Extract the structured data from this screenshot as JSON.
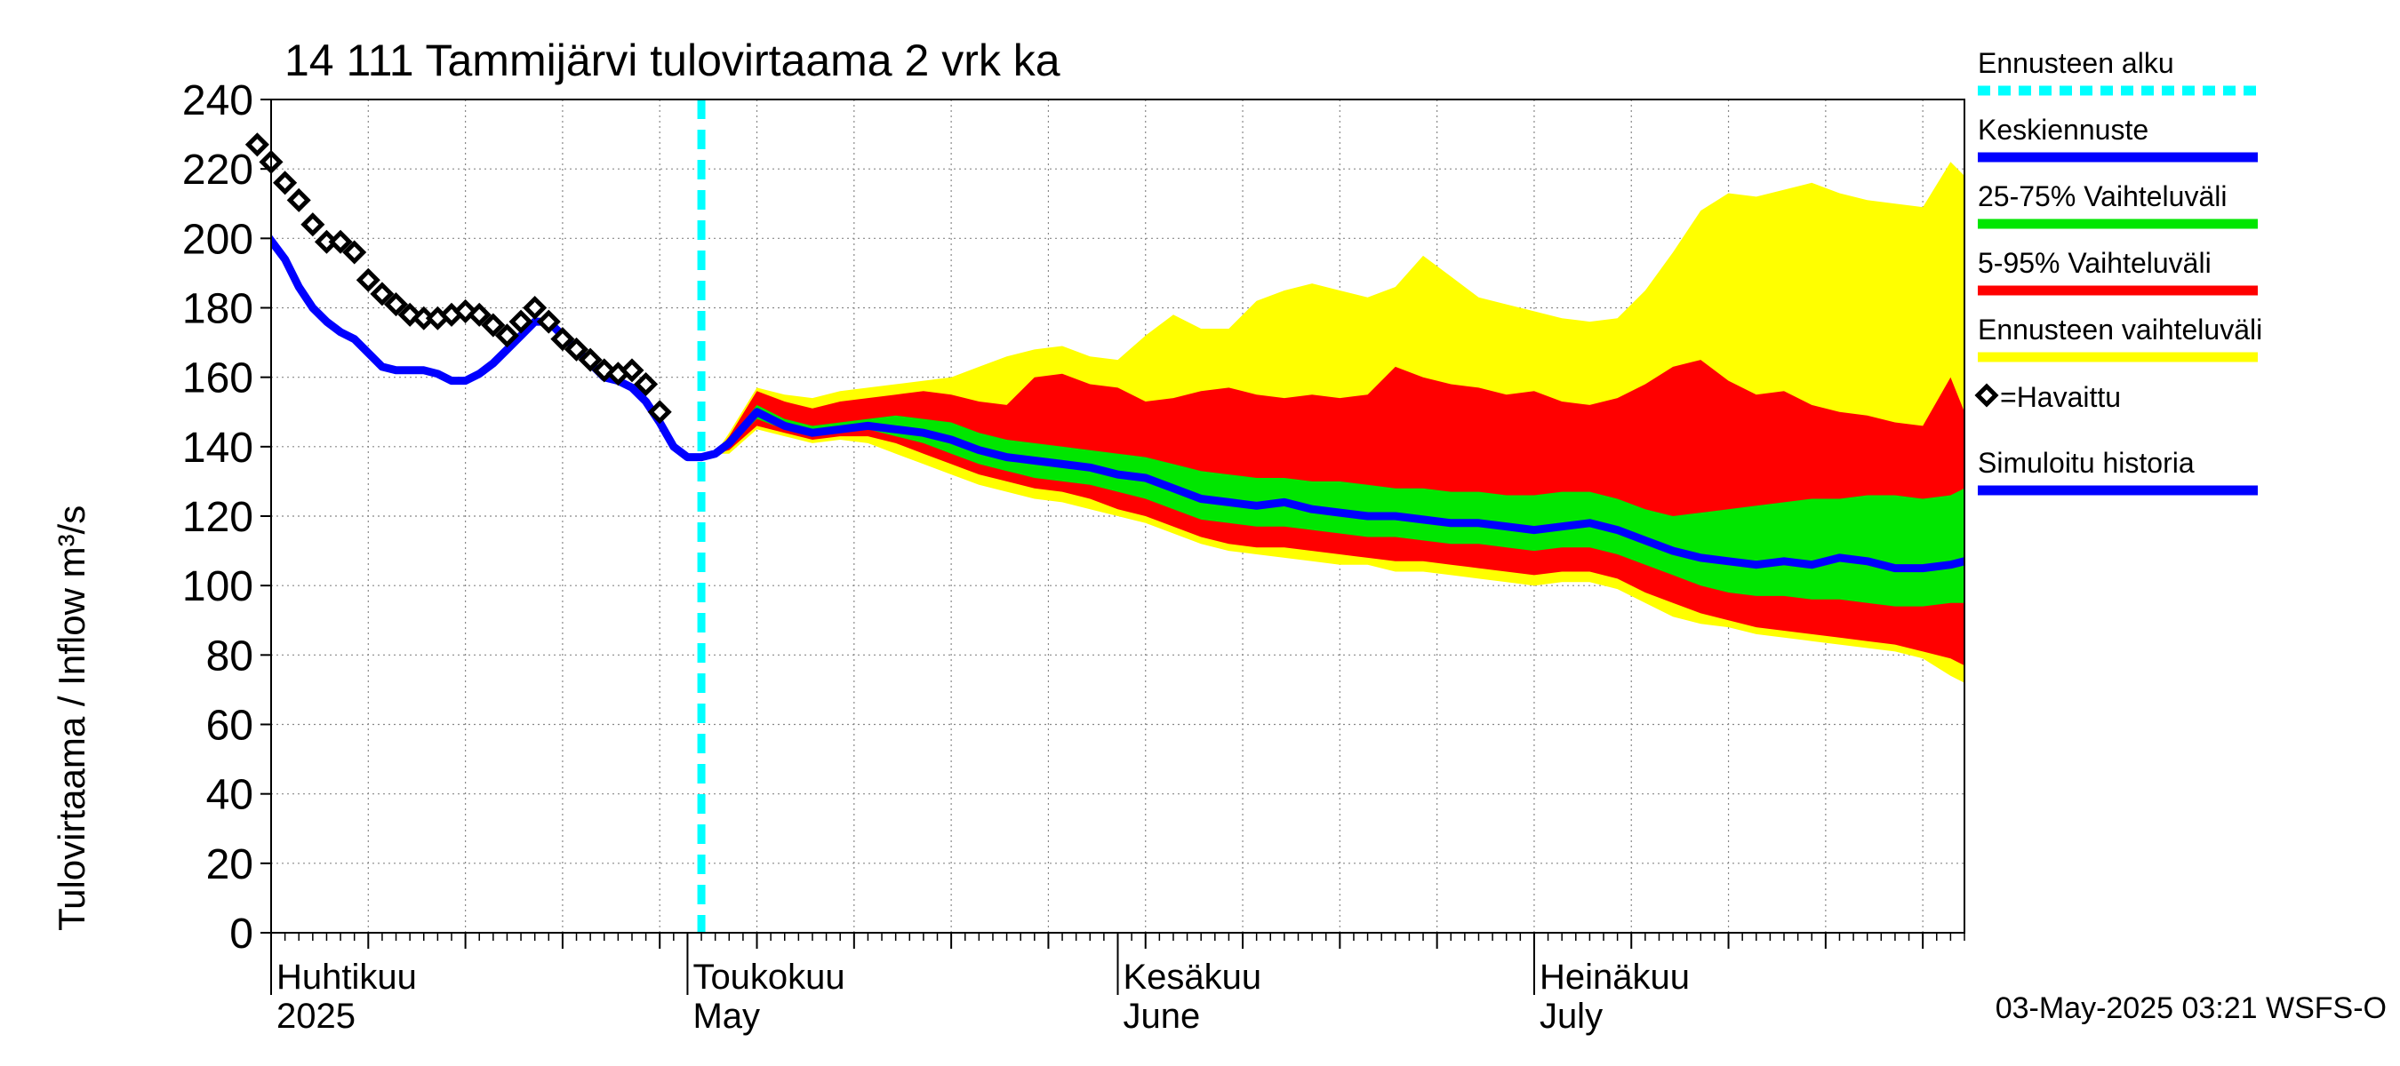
{
  "chart_data": {
    "type": "area",
    "title": "14 111 Tammijärvi tulovirtaama 2 vrk ka",
    "ylabel": "Tulovirtaama / Inflow    m³/s",
    "ylim": [
      0,
      240
    ],
    "yticks": [
      0,
      20,
      40,
      60,
      80,
      100,
      120,
      140,
      160,
      180,
      200,
      220,
      240
    ],
    "x_domain_days": [
      0,
      122
    ],
    "month_labels": [
      {
        "line1": "Huhtikuu",
        "line2": "2025",
        "day": 0
      },
      {
        "line1": "Toukokuu",
        "line2": "May",
        "day": 30
      },
      {
        "line1": "Kesäkuu",
        "line2": "June",
        "day": 61
      },
      {
        "line1": "Heinäkuu",
        "line2": "July",
        "day": 91
      }
    ],
    "forecast_start_day": 31,
    "grid": true,
    "legend_position": "right",
    "footer": "03-May-2025 03:21 WSFS-O",
    "legend": [
      {
        "label": "Ennusteen alku",
        "color": "#00ffff",
        "style": "dashed"
      },
      {
        "label": "Keskiennuste",
        "color": "#0000ff",
        "style": "line"
      },
      {
        "label": "25-75% Vaihteluväli",
        "color": "#00e600",
        "style": "line"
      },
      {
        "label": "5-95% Vaihteluväli",
        "color": "#ff0000",
        "style": "line"
      },
      {
        "label": "Ennusteen vaihteluväli",
        "color": "#ffff00",
        "style": "line"
      },
      {
        "label": "=Havaittu",
        "color": "#000000",
        "style": "diamond"
      },
      {
        "label": "Simuloitu historia",
        "color": "#0000ff",
        "style": "line"
      }
    ],
    "observed": {
      "name": "Havaittu",
      "x": [
        -1,
        0,
        1,
        2,
        3,
        4,
        5,
        6,
        7,
        8,
        9,
        10,
        11,
        12,
        13,
        14,
        15,
        16,
        17,
        18,
        19,
        20,
        21,
        22,
        23,
        24,
        25,
        26,
        27,
        28
      ],
      "y": [
        227,
        222,
        216,
        211,
        204,
        199,
        199,
        196,
        188,
        184,
        181,
        178,
        177,
        177,
        178,
        179,
        178,
        175,
        172,
        176,
        180,
        176,
        171,
        168,
        165,
        162,
        161,
        162,
        158,
        150
      ]
    },
    "simulated_history": {
      "name": "Simuloitu historia",
      "x": [
        -0.5,
        1,
        2,
        3,
        4,
        5,
        6,
        7,
        8,
        9,
        10,
        11,
        12,
        13,
        14,
        15,
        16,
        17,
        18,
        19,
        20,
        21,
        22,
        23,
        24,
        25,
        26,
        27,
        28,
        29,
        30,
        31
      ],
      "y": [
        202,
        194,
        186,
        180,
        176,
        173,
        171,
        167,
        163,
        162,
        162,
        162,
        161,
        159,
        159,
        161,
        164,
        168,
        172,
        176,
        176,
        172,
        168,
        164,
        160,
        159,
        157,
        153,
        147,
        140,
        137,
        137
      ]
    },
    "forecast": {
      "x": [
        31,
        32,
        33,
        35,
        37,
        39,
        41,
        43,
        45,
        47,
        49,
        51,
        53,
        55,
        57,
        59,
        61,
        63,
        65,
        67,
        69,
        71,
        73,
        75,
        77,
        79,
        81,
        83,
        85,
        87,
        89,
        91,
        93,
        95,
        97,
        99,
        101,
        103,
        105,
        107,
        109,
        111,
        113,
        115,
        117,
        119,
        121,
        122
      ],
      "median": [
        137,
        138,
        141,
        150,
        146,
        144,
        145,
        146,
        145,
        144,
        142,
        139,
        137,
        136,
        135,
        134,
        132,
        131,
        128,
        125,
        124,
        123,
        124,
        122,
        121,
        120,
        120,
        119,
        118,
        118,
        117,
        116,
        117,
        118,
        116,
        113,
        110,
        108,
        107,
        106,
        107,
        106,
        108,
        107,
        105,
        105,
        106,
        107
      ],
      "p25": [
        137,
        138,
        140,
        148,
        145,
        143,
        144,
        145,
        143,
        141,
        138,
        135,
        133,
        131,
        130,
        129,
        127,
        125,
        122,
        119,
        118,
        117,
        117,
        116,
        115,
        114,
        114,
        113,
        112,
        112,
        111,
        110,
        111,
        111,
        109,
        106,
        103,
        100,
        98,
        97,
        97,
        96,
        96,
        95,
        94,
        94,
        95,
        95
      ],
      "p75": [
        137,
        138,
        142,
        152,
        148,
        146,
        147,
        148,
        149,
        148,
        147,
        144,
        142,
        141,
        140,
        139,
        138,
        137,
        135,
        133,
        132,
        131,
        131,
        130,
        130,
        129,
        128,
        128,
        127,
        127,
        126,
        126,
        127,
        127,
        125,
        122,
        120,
        121,
        122,
        123,
        124,
        125,
        125,
        126,
        126,
        125,
        126,
        128
      ],
      "p05": [
        137,
        138,
        139,
        146,
        144,
        142,
        143,
        143,
        141,
        138,
        135,
        132,
        130,
        128,
        127,
        125,
        122,
        120,
        117,
        114,
        112,
        111,
        111,
        110,
        109,
        108,
        107,
        107,
        106,
        105,
        104,
        103,
        104,
        104,
        102,
        98,
        95,
        92,
        90,
        88,
        87,
        86,
        85,
        84,
        83,
        81,
        79,
        77
      ],
      "p95": [
        137,
        138,
        143,
        156,
        153,
        151,
        153,
        154,
        155,
        156,
        155,
        153,
        152,
        160,
        161,
        158,
        157,
        153,
        154,
        156,
        157,
        155,
        154,
        155,
        154,
        155,
        163,
        160,
        158,
        157,
        155,
        156,
        153,
        152,
        154,
        158,
        163,
        165,
        159,
        155,
        156,
        152,
        150,
        149,
        147,
        146,
        160,
        150
      ],
      "min": [
        137,
        138,
        138,
        145,
        143,
        141,
        142,
        141,
        138,
        135,
        132,
        129,
        127,
        125,
        124,
        122,
        120,
        118,
        115,
        112,
        110,
        109,
        108,
        107,
        106,
        106,
        104,
        104,
        103,
        102,
        101,
        100,
        101,
        101,
        99,
        95,
        91,
        89,
        88,
        86,
        85,
        84,
        83,
        82,
        81,
        79,
        74,
        72
      ],
      "max": [
        137,
        138,
        144,
        157,
        155,
        154,
        156,
        157,
        158,
        159,
        160,
        163,
        166,
        168,
        169,
        166,
        165,
        172,
        178,
        174,
        174,
        182,
        185,
        187,
        185,
        183,
        186,
        195,
        189,
        183,
        181,
        179,
        177,
        176,
        177,
        185,
        196,
        208,
        213,
        212,
        214,
        216,
        213,
        211,
        210,
        209,
        222,
        218
      ]
    }
  }
}
